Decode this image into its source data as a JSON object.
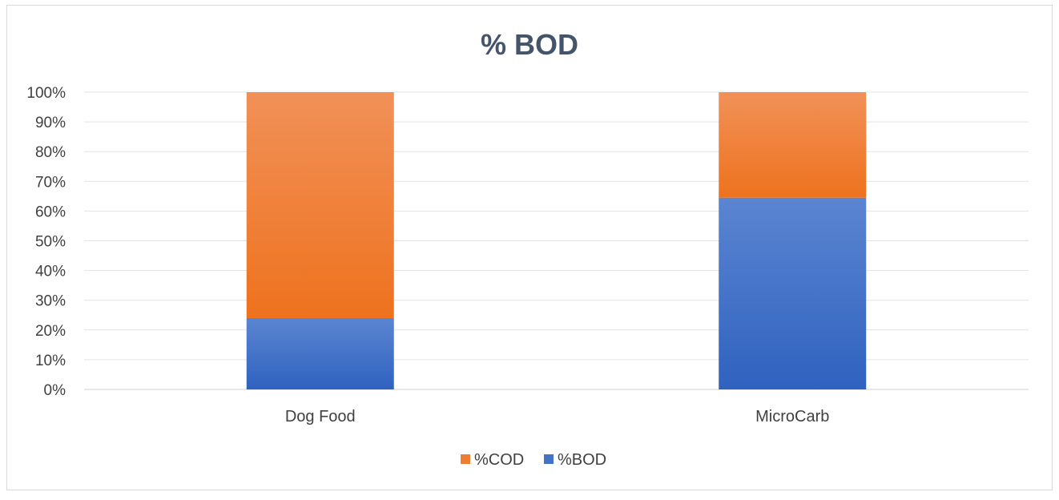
{
  "chart_data": {
    "type": "bar",
    "stacked": "percent",
    "title": "% BOD",
    "xlabel": "",
    "ylabel": "",
    "categories": [
      "Dog Food",
      "MicroCarb"
    ],
    "series": [
      {
        "name": "%BOD",
        "values": [
          24,
          64.5
        ],
        "color": "#4472c4"
      },
      {
        "name": "%COD",
        "values": [
          76,
          35.5
        ],
        "color": "#ed7d31"
      }
    ],
    "ylim": [
      0,
      100
    ],
    "y_ticks": [
      "0%",
      "10%",
      "20%",
      "30%",
      "40%",
      "50%",
      "60%",
      "70%",
      "80%",
      "90%",
      "100%"
    ],
    "grid": true,
    "legend": {
      "position": "bottom",
      "entries": [
        "%COD",
        "%BOD"
      ]
    }
  }
}
